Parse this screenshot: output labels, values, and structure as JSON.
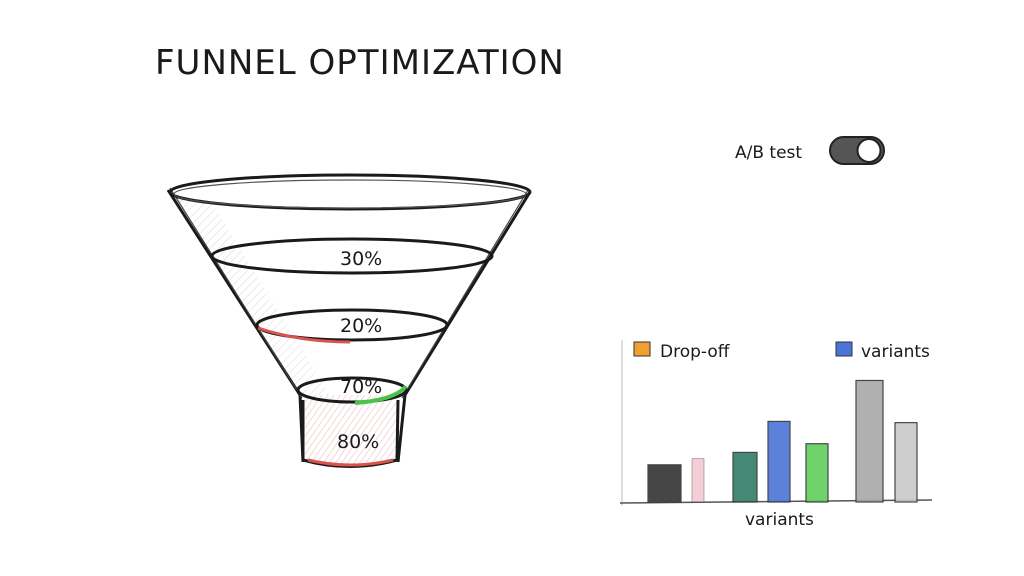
{
  "title": "FUNNEL OPTIMIZATION",
  "ab_test": {
    "label": "A/B test",
    "enabled": true
  },
  "funnel": {
    "stages": [
      {
        "label": "30%",
        "accent": ""
      },
      {
        "label": "20%",
        "accent": "#d9534f"
      },
      {
        "label": "70%",
        "accent": "#4cc24a"
      },
      {
        "label": "80%",
        "accent": "#d9534f"
      }
    ]
  },
  "chart_data": {
    "type": "bar",
    "title": "",
    "xlabel": "variants",
    "ylabel": "",
    "legend": [
      {
        "label": "Drop-off",
        "color": "#f0a030"
      },
      {
        "label": "variants",
        "color": "#4a74d8"
      }
    ],
    "legend_placement": "top",
    "ylim": [
      0,
      10
    ],
    "grid": false,
    "bars": [
      {
        "value": 3.0,
        "color": "#333333"
      },
      {
        "value": 3.5,
        "color": "#f2b8c6"
      },
      {
        "value": 4.0,
        "color": "#2f7d68"
      },
      {
        "value": 6.5,
        "color": "#4a74d8"
      },
      {
        "value": 4.7,
        "color": "#5fcf5a"
      },
      {
        "value": 9.8,
        "color": "#a8a8a8"
      },
      {
        "value": 6.4,
        "color": "#c9c9c9"
      }
    ]
  }
}
